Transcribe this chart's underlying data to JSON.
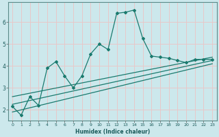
{
  "title": "",
  "xlabel": "Humidex (Indice chaleur)",
  "ylabel": "",
  "bg_color": "#cce8ec",
  "line_color": "#1a7a6e",
  "grid_color": "#e8c8c8",
  "xlim": [
    -0.5,
    23.5
  ],
  "ylim": [
    1.5,
    6.9
  ],
  "xticks": [
    0,
    1,
    2,
    3,
    4,
    5,
    6,
    7,
    8,
    9,
    10,
    11,
    12,
    13,
    14,
    15,
    16,
    17,
    18,
    19,
    20,
    21,
    22,
    23
  ],
  "yticks": [
    2,
    3,
    4,
    5,
    6
  ],
  "main_x": [
    0,
    1,
    2,
    3,
    4,
    5,
    6,
    7,
    8,
    9,
    10,
    11,
    12,
    13,
    14,
    15,
    16,
    17,
    18,
    19,
    20,
    21,
    22,
    23
  ],
  "main_y": [
    2.15,
    1.75,
    2.6,
    2.2,
    3.9,
    4.2,
    3.55,
    3.0,
    3.55,
    4.55,
    5.0,
    4.75,
    6.4,
    6.45,
    6.55,
    5.25,
    4.45,
    4.4,
    4.35,
    4.25,
    4.15,
    4.3,
    4.3,
    4.3
  ],
  "trend1_x": [
    0,
    23
  ],
  "trend1_y": [
    2.6,
    4.4
  ],
  "trend2_x": [
    0,
    23
  ],
  "trend2_y": [
    2.25,
    4.25
  ],
  "trend3_x": [
    0,
    23
  ],
  "trend3_y": [
    1.9,
    4.1
  ]
}
